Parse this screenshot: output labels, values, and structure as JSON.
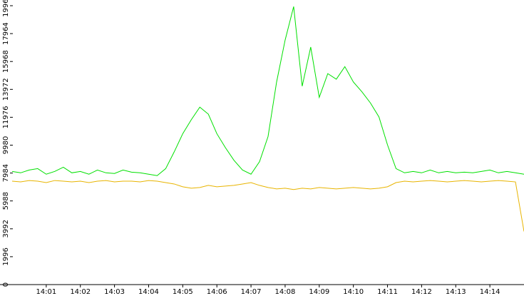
{
  "chart_data": {
    "type": "line",
    "x": [
      840,
      840.25,
      840.5,
      840.75,
      841,
      841.25,
      841.5,
      841.75,
      842,
      842.25,
      842.5,
      842.75,
      843,
      843.25,
      843.5,
      843.75,
      844,
      844.25,
      844.5,
      844.75,
      845,
      845.25,
      845.5,
      845.75,
      846,
      846.25,
      846.5,
      846.75,
      847,
      847.25,
      847.5,
      847.75,
      848,
      848.25,
      848.5,
      848.75,
      849,
      849.25,
      849.5,
      849.75,
      850,
      850.25,
      850.5,
      850.75,
      851,
      851.25,
      851.5,
      851.75,
      852,
      852.25,
      852.5,
      852.75,
      853,
      853.25,
      853.5,
      853.75,
      854,
      854.25,
      854.5,
      854.75,
      855
    ],
    "series": [
      {
        "color": "#00e000",
        "values": [
          8100,
          8000,
          8200,
          8300,
          7900,
          8100,
          8400,
          8000,
          8100,
          7900,
          8200,
          8000,
          7950,
          8200,
          8050,
          8000,
          7900,
          7800,
          8300,
          9500,
          10800,
          11800,
          12700,
          12200,
          10800,
          9800,
          8900,
          8200,
          7900,
          8800,
          10600,
          14500,
          17500,
          19900,
          14200,
          17000,
          13400,
          15100,
          14700,
          15600,
          14500,
          13800,
          13000,
          12000,
          10000,
          8300,
          8000,
          8100,
          8000,
          8200,
          8000,
          8100,
          8000,
          8050,
          8000,
          8100,
          8200,
          8000,
          8100,
          8000,
          7900
        ]
      },
      {
        "color": "#e8b400",
        "values": [
          7400,
          7350,
          7450,
          7400,
          7300,
          7450,
          7400,
          7350,
          7400,
          7300,
          7400,
          7450,
          7350,
          7400,
          7400,
          7350,
          7450,
          7400,
          7300,
          7200,
          7000,
          6900,
          6950,
          7100,
          7000,
          7050,
          7100,
          7200,
          7300,
          7100,
          6950,
          6850,
          6900,
          6800,
          6900,
          6850,
          6950,
          6900,
          6850,
          6900,
          6950,
          6900,
          6850,
          6900,
          7000,
          7300,
          7400,
          7350,
          7400,
          7450,
          7400,
          7350,
          7400,
          7450,
          7400,
          7350,
          7400,
          7450,
          7400,
          7350,
          3800
        ]
      }
    ],
    "xlim": [
      840,
      855
    ],
    "xticks": [
      {
        "value": 841,
        "label": "14:01"
      },
      {
        "value": 842,
        "label": "14:02"
      },
      {
        "value": 843,
        "label": "14:03"
      },
      {
        "value": 844,
        "label": "14:04"
      },
      {
        "value": 845,
        "label": "14:05"
      },
      {
        "value": 846,
        "label": "14:06"
      },
      {
        "value": 847,
        "label": "14:07"
      },
      {
        "value": 848,
        "label": "14:08"
      },
      {
        "value": 849,
        "label": "14:09"
      },
      {
        "value": 850,
        "label": "14:10"
      },
      {
        "value": 851,
        "label": "14:11"
      },
      {
        "value": 852,
        "label": "14:12"
      },
      {
        "value": 853,
        "label": "14:13"
      },
      {
        "value": 854,
        "label": "14:14"
      }
    ],
    "ylim": [
      0,
      19961
    ],
    "yticks": [
      0,
      1996,
      3992,
      5988,
      7984,
      9980,
      11976,
      13972,
      15968,
      17964,
      19961
    ]
  }
}
